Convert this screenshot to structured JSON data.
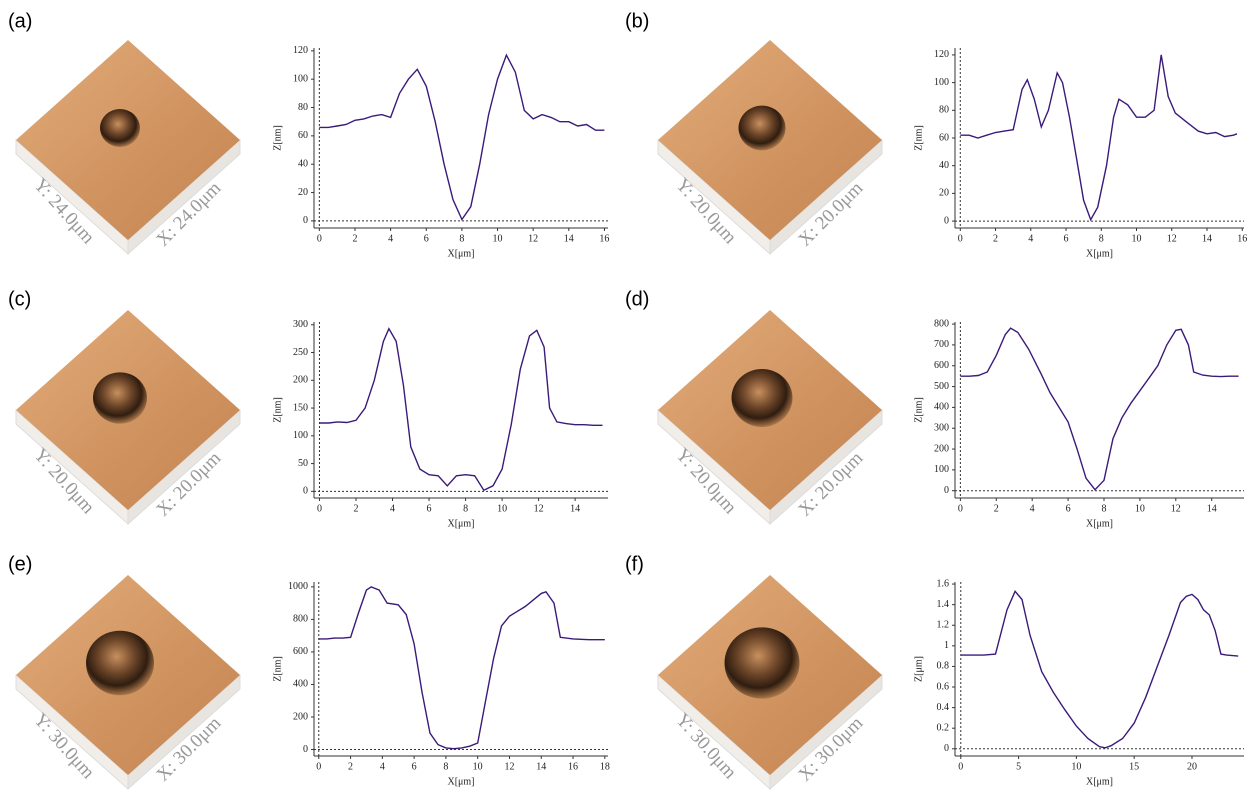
{
  "chart_data": [
    {
      "type": "line",
      "panel_label": "(a)",
      "image_y_label": "Y: 24.0μm",
      "image_x_label": "X: 24.0μm",
      "xlabel": "X[μm]",
      "ylabel": "Z[nm]",
      "color": "#3b1a7a",
      "x": [
        0,
        0.5,
        1,
        1.5,
        2,
        2.5,
        3,
        3.5,
        4,
        4.5,
        5,
        5.5,
        6,
        6.5,
        7,
        7.5,
        8,
        8.5,
        9,
        9.5,
        10,
        10.5,
        11,
        11.5,
        12,
        12.5,
        13,
        13.5,
        14,
        14.5,
        15,
        15.5,
        16
      ],
      "values": [
        66,
        66,
        67,
        68,
        71,
        72,
        74,
        75,
        73,
        90,
        100,
        107,
        95,
        70,
        40,
        15,
        1,
        10,
        40,
        75,
        100,
        117,
        105,
        78,
        72,
        75,
        73,
        70,
        70,
        67,
        68,
        64,
        64
      ],
      "xlim": [
        -0.3,
        16.2
      ],
      "ylim": [
        -5,
        122
      ],
      "xticks": [
        0,
        2,
        4,
        6,
        8,
        10,
        12,
        14,
        16
      ],
      "yticks": [
        0,
        20,
        40,
        60,
        80,
        100,
        120
      ]
    },
    {
      "type": "line",
      "panel_label": "(b)",
      "image_y_label": "Y: 20.0μm",
      "image_x_label": "X: 20.0μm",
      "xlabel": "X[μm]",
      "ylabel": "Z[nm]",
      "color": "#3b1a7a",
      "x": [
        0,
        0.5,
        1,
        1.5,
        2,
        2.5,
        3,
        3.5,
        3.8,
        4.2,
        4.6,
        5,
        5.5,
        5.8,
        6.2,
        6.6,
        7,
        7.4,
        7.8,
        8.3,
        8.7,
        9,
        9.5,
        10,
        10.5,
        11,
        11.4,
        11.8,
        12.2,
        12.8,
        13.5,
        14,
        14.5,
        15,
        15.5,
        15.7
      ],
      "values": [
        62,
        62,
        60,
        62,
        64,
        65,
        66,
        95,
        102,
        88,
        68,
        80,
        107,
        100,
        75,
        45,
        15,
        1,
        10,
        40,
        75,
        88,
        84,
        75,
        75,
        80,
        120,
        90,
        78,
        72,
        65,
        63,
        64,
        61,
        62,
        63
      ],
      "xlim": [
        -0.3,
        16.1
      ],
      "ylim": [
        -5,
        125
      ],
      "xticks": [
        0,
        2,
        4,
        6,
        8,
        10,
        12,
        14,
        16
      ],
      "yticks": [
        0,
        20,
        40,
        60,
        80,
        100,
        120
      ]
    },
    {
      "type": "line",
      "panel_label": "(c)",
      "image_y_label": "Y: 20.0μm",
      "image_x_label": "X: 20.0μm",
      "xlabel": "X[μm]",
      "ylabel": "Z[nm]",
      "color": "#3b1a7a",
      "x": [
        0,
        0.5,
        1,
        1.5,
        2,
        2.5,
        3,
        3.5,
        3.8,
        4.2,
        4.6,
        5,
        5.5,
        6,
        6.5,
        7,
        7.5,
        8,
        8.5,
        9,
        9.5,
        10,
        10.5,
        11,
        11.5,
        11.9,
        12.3,
        12.6,
        13,
        13.5,
        14,
        14.5,
        15,
        15.5
      ],
      "values": [
        123,
        123,
        125,
        124,
        128,
        150,
        200,
        270,
        293,
        270,
        190,
        80,
        40,
        30,
        28,
        10,
        28,
        30,
        28,
        2,
        10,
        40,
        120,
        220,
        280,
        290,
        260,
        150,
        125,
        122,
        120,
        120,
        119,
        119
      ],
      "xlim": [
        -0.3,
        15.8
      ],
      "ylim": [
        -12,
        305
      ],
      "xticks": [
        0,
        2,
        4,
        6,
        8,
        10,
        12,
        14
      ],
      "yticks": [
        0,
        50,
        100,
        150,
        200,
        250,
        300
      ]
    },
    {
      "type": "line",
      "panel_label": "(d)",
      "image_y_label": "Y: 20.0μm",
      "image_x_label": "X: 20.0μm",
      "xlabel": "X[μm]",
      "ylabel": "Z[nm]",
      "color": "#3b1a7a",
      "x": [
        0,
        0.5,
        1,
        1.5,
        2,
        2.5,
        2.8,
        3.2,
        3.8,
        4.5,
        5,
        5.5,
        6,
        6.5,
        7,
        7.5,
        8,
        8.5,
        9,
        9.5,
        10,
        10.5,
        11,
        11.5,
        12,
        12.3,
        12.7,
        13,
        13.5,
        14,
        14.5,
        15,
        15.5
      ],
      "values": [
        550,
        550,
        553,
        570,
        650,
        750,
        780,
        760,
        680,
        560,
        470,
        400,
        330,
        200,
        60,
        5,
        50,
        250,
        350,
        420,
        480,
        540,
        600,
        700,
        770,
        775,
        700,
        570,
        555,
        550,
        548,
        550,
        550
      ],
      "xlim": [
        -0.3,
        15.8
      ],
      "ylim": [
        -35,
        810
      ],
      "xticks": [
        0,
        2,
        4,
        6,
        8,
        10,
        12,
        14
      ],
      "yticks": [
        0,
        100,
        200,
        300,
        400,
        500,
        600,
        700,
        800
      ]
    },
    {
      "type": "line",
      "panel_label": "(e)",
      "image_y_label": "Y: 30.0μm",
      "image_x_label": "X: 30.0μm",
      "xlabel": "X[μm]",
      "ylabel": "Z[nm]",
      "color": "#3b1a7a",
      "x": [
        0,
        0.5,
        1,
        1.5,
        2,
        2.5,
        3,
        3.3,
        3.8,
        4.3,
        5,
        5.5,
        6,
        6.5,
        7,
        7.5,
        8,
        8.5,
        9,
        9.5,
        10,
        10.5,
        11,
        11.5,
        12,
        12.5,
        13,
        13.5,
        14,
        14.3,
        14.8,
        15.2,
        16,
        17,
        18
      ],
      "values": [
        680,
        680,
        685,
        685,
        690,
        840,
        980,
        1000,
        980,
        900,
        890,
        830,
        650,
        350,
        100,
        30,
        10,
        5,
        10,
        20,
        40,
        300,
        560,
        760,
        820,
        850,
        880,
        920,
        960,
        970,
        900,
        690,
        680,
        675,
        675
      ],
      "xlim": [
        -0.3,
        18.2
      ],
      "ylim": [
        -40,
        1030
      ],
      "xticks": [
        0,
        2,
        4,
        6,
        8,
        10,
        12,
        14,
        16,
        18
      ],
      "yticks": [
        0,
        200,
        400,
        600,
        800,
        1000
      ]
    },
    {
      "type": "line",
      "panel_label": "(f)",
      "image_y_label": "Y: 30.0μm",
      "image_x_label": "X: 30.0μm",
      "xlabel": "X[μm]",
      "ylabel": "Z[μm]",
      "color": "#3b1a7a",
      "x": [
        0,
        1,
        2,
        3,
        4,
        4.7,
        5.3,
        6,
        7,
        8,
        9,
        10,
        11,
        12,
        12.5,
        13,
        14,
        15,
        16,
        17,
        18,
        19,
        19.5,
        20,
        20.5,
        21,
        21.5,
        22,
        22.5,
        23,
        24
      ],
      "values": [
        0.91,
        0.91,
        0.91,
        0.92,
        1.35,
        1.53,
        1.45,
        1.1,
        0.75,
        0.55,
        0.38,
        0.22,
        0.1,
        0.02,
        0.01,
        0.03,
        0.1,
        0.25,
        0.5,
        0.8,
        1.1,
        1.42,
        1.48,
        1.5,
        1.45,
        1.35,
        1.3,
        1.15,
        0.92,
        0.91,
        0.9
      ],
      "xlim": [
        -0.5,
        24.5
      ],
      "ylim": [
        -0.07,
        1.62
      ],
      "xticks": [
        0,
        5,
        10,
        15,
        20
      ],
      "yticks": [
        0,
        0.2,
        0.4,
        0.6,
        0.8,
        1,
        1.2,
        1.4,
        1.6
      ]
    }
  ]
}
